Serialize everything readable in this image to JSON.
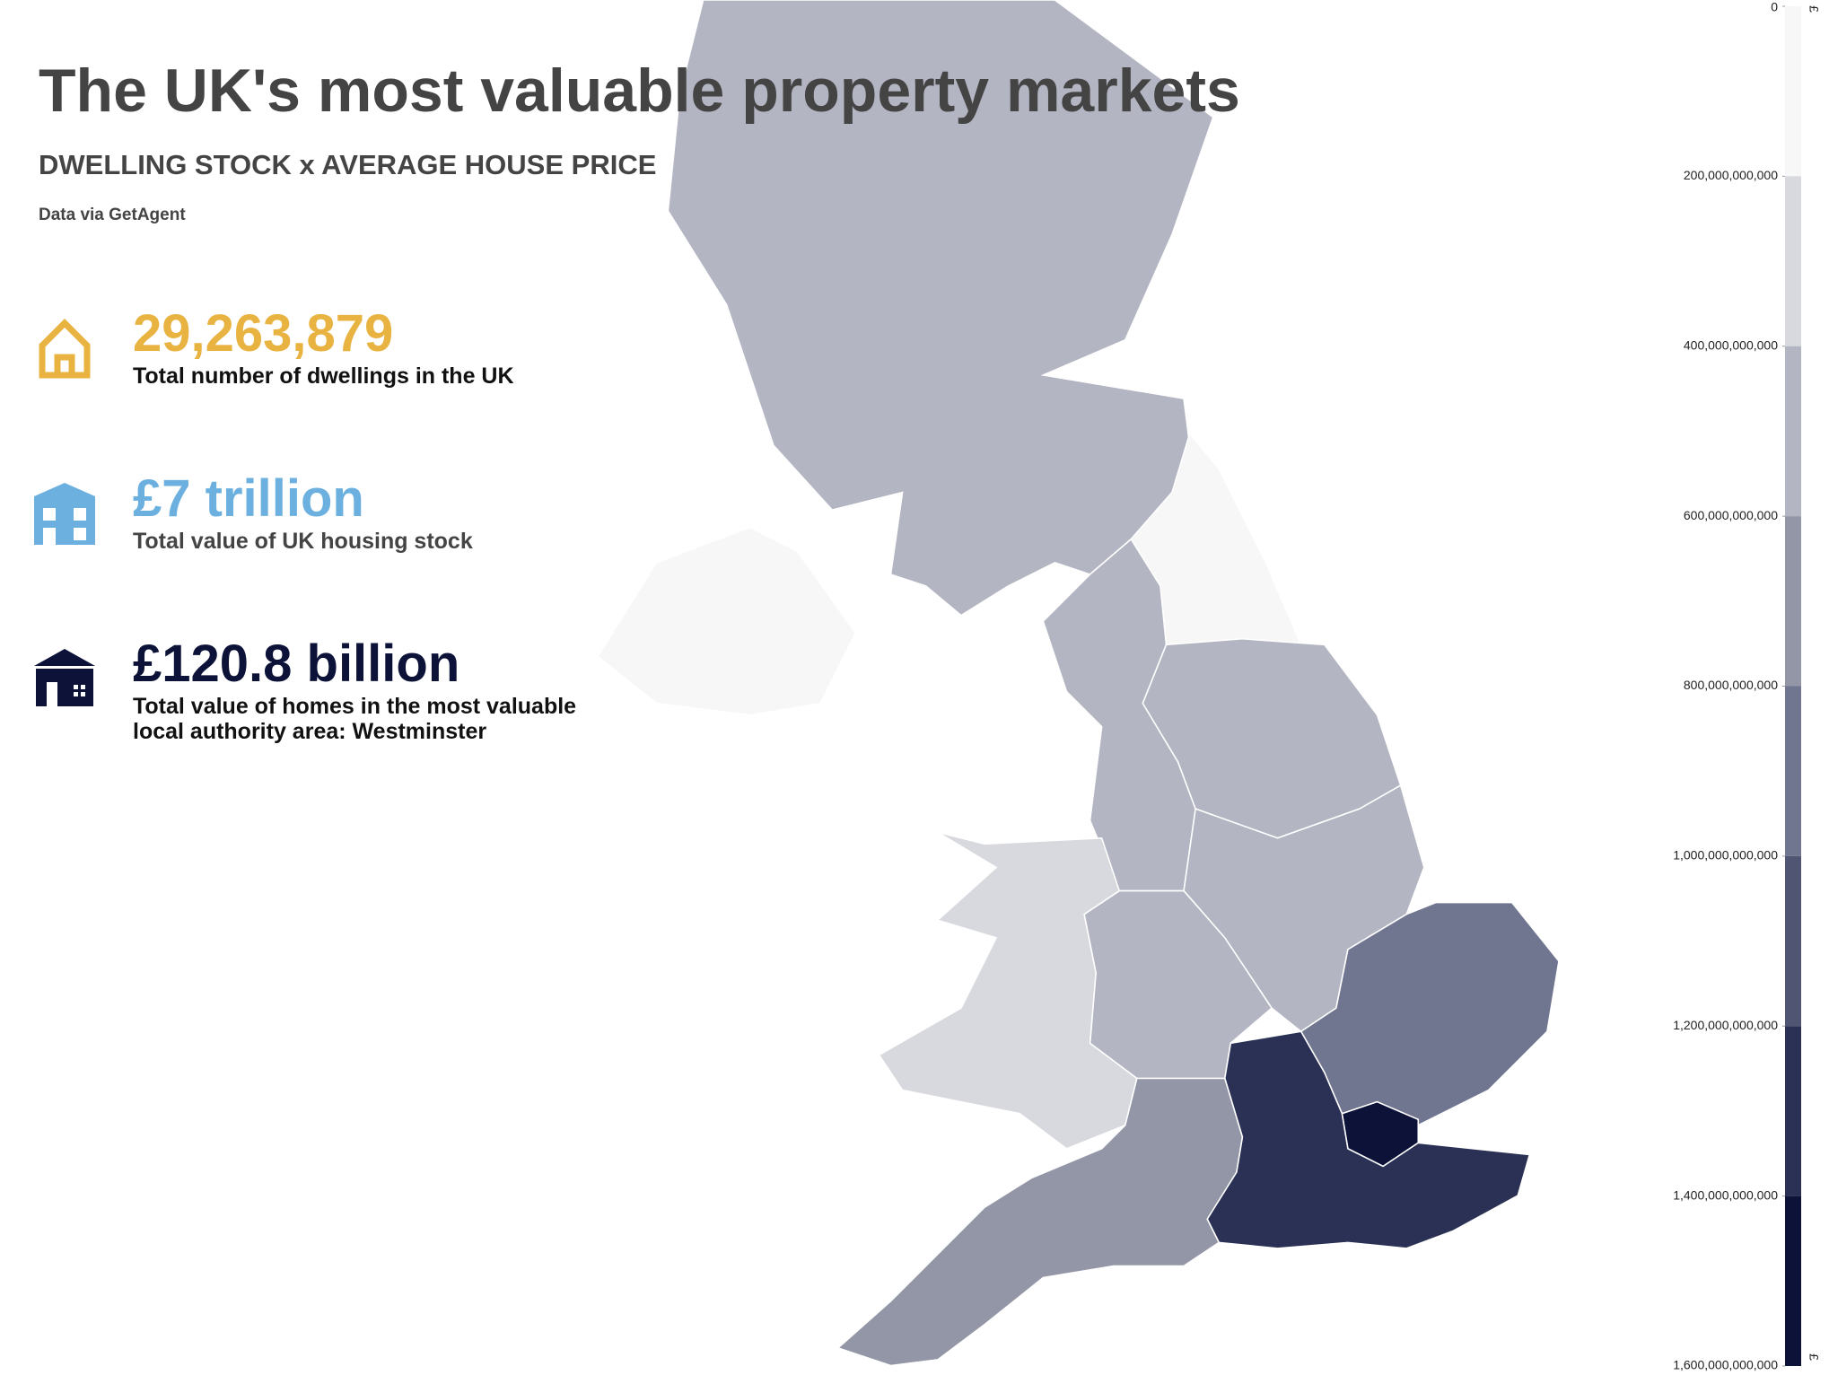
{
  "header": {
    "title": "The UK's most valuable property markets",
    "subtitle": "DWELLING STOCK x AVERAGE HOUSE PRICE",
    "source": "Data via GetAgent"
  },
  "stats": [
    {
      "value": "29,263,879",
      "lines": [
        "Total number of dwellings in the UK"
      ],
      "color": "#e8b341"
    },
    {
      "value": "£7 trillion",
      "lines": [
        "Total value of UK housing stock"
      ],
      "color": "#6cb0df"
    },
    {
      "value": "£120.8 billion",
      "lines": [
        "Total value of homes in the most valuable",
        "local authority area: Westminster"
      ],
      "color": "#0c1238"
    }
  ],
  "legend": {
    "unit": "£",
    "ticks": [
      0,
      {
        "value": 200000000000,
        "label": "200,000,000,000"
      },
      {
        "value": 400000000000,
        "label": "400,000,000,000"
      },
      {
        "value": 600000000000,
        "label": "600,000,000,000"
      },
      {
        "value": 800000000000,
        "label": "800,000,000,000"
      },
      {
        "value": 1000000000000,
        "label": "1,000,000,000,000"
      },
      {
        "value": 1200000000000,
        "label": "1,200,000,000,000"
      },
      {
        "value": 1400000000000,
        "label": "1,400,000,000,000"
      },
      {
        "value": 1600000000000,
        "label": "1,600,000,000,000"
      }
    ],
    "colors": [
      "#f7f7f7",
      "#d8d9de",
      "#b3b5c2",
      "#9396a6",
      "#717690",
      "#4f5573",
      "#2b3155",
      "#0c1238"
    ]
  },
  "regions": [
    {
      "value": 500000000000
    },
    {
      "value": 150000000000
    },
    {
      "value": 500000000000
    },
    {
      "value": 500000000000
    },
    {
      "value": 500000000000
    },
    {
      "value": 500000000000
    },
    {
      "value": 300000000000
    },
    {
      "value": 900000000000
    },
    {
      "value": 1500000000000
    },
    {
      "value": 1300000000000
    },
    {
      "value": 700000000000
    },
    {
      "value": 150000000000
    }
  ]
}
